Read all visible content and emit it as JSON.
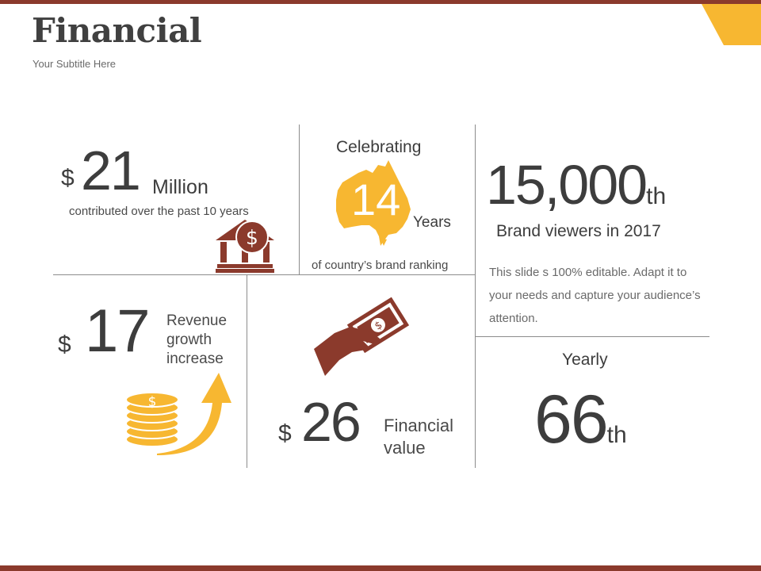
{
  "header": {
    "title": "Financial",
    "subtitle": "Your Subtitle Here"
  },
  "colors": {
    "brown": "#8b3a2c",
    "gold": "#f7b731",
    "text": "#3d3d3d"
  },
  "blocks": {
    "million": {
      "currency": "$",
      "value": "21",
      "unit": "Million",
      "caption": "contributed over the past 10 years",
      "icon": "bank-dollar-icon"
    },
    "celebrating": {
      "heading": "Celebrating",
      "value": "14",
      "unit": "Years",
      "caption": "of country’s brand ranking",
      "icon": "australia-map-icon"
    },
    "viewers": {
      "value": "15,000",
      "suffix": "th",
      "label": "Brand viewers in 2017",
      "description": "This slide s 100% editable. Adapt it to your needs and capture your audience’s attention."
    },
    "revenue": {
      "currency": "$",
      "value": "17",
      "label_lines": [
        "Revenue",
        "growth",
        "increase"
      ],
      "icon": "coins-arrow-icon"
    },
    "financial_value": {
      "currency": "$",
      "value": "26",
      "label_lines": [
        "Financial",
        "value"
      ],
      "icon": "hand-money-icon"
    },
    "yearly": {
      "heading": "Yearly",
      "value": "66",
      "suffix": "th"
    }
  }
}
